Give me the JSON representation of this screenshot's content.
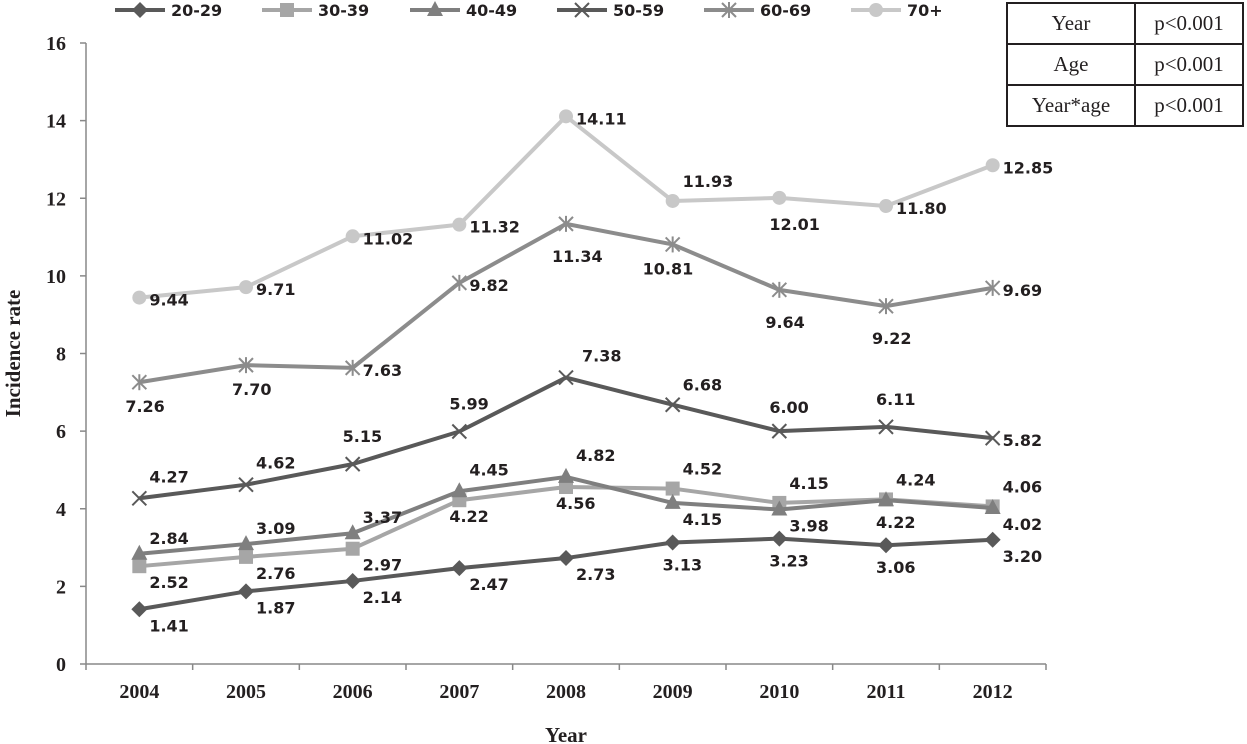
{
  "chart_data": {
    "type": "line",
    "xlabel": "Year",
    "ylabel": "Incidence rate",
    "ylim": [
      0,
      16
    ],
    "yticks": [
      "0",
      "2",
      "4",
      "6",
      "8",
      "10",
      "12",
      "14",
      "16"
    ],
    "categories": [
      "2004",
      "2005",
      "2006",
      "2007",
      "2008",
      "2009",
      "2010",
      "2011",
      "2012"
    ],
    "legend_position": "top",
    "series": [
      {
        "name": "20-29",
        "marker": "diamond",
        "color": "#595959",
        "values": [
          1.41,
          1.87,
          2.14,
          2.47,
          2.73,
          3.13,
          3.23,
          3.06,
          3.2
        ],
        "labels": [
          "1.41",
          "1.87",
          "2.14",
          "2.47",
          "2.73",
          "3.13",
          "3.23",
          "3.06",
          "3.20"
        ]
      },
      {
        "name": "30-39",
        "marker": "square",
        "color": "#a6a6a6",
        "values": [
          2.52,
          2.76,
          2.97,
          4.22,
          4.56,
          4.52,
          4.15,
          4.24,
          4.06
        ],
        "labels": [
          "2.52",
          "2.76",
          "2.97",
          "4.22",
          "4.56",
          "4.52",
          "4.15",
          "4.24",
          "4.06"
        ]
      },
      {
        "name": "40-49",
        "marker": "triangle",
        "color": "#7f7f7f",
        "values": [
          2.84,
          3.09,
          3.37,
          4.45,
          4.82,
          4.15,
          3.98,
          4.22,
          4.02
        ],
        "labels": [
          "2.84",
          "3.09",
          "3.37",
          "4.45",
          "4.82",
          "4.15",
          "3.98",
          "4.22",
          "4.02"
        ]
      },
      {
        "name": "50-59",
        "marker": "x",
        "color": "#595959",
        "values": [
          4.27,
          4.62,
          5.15,
          5.99,
          7.38,
          6.68,
          6.0,
          6.11,
          5.82
        ],
        "labels": [
          "4.27",
          "4.62",
          "5.15",
          "5.99",
          "7.38",
          "6.68",
          "6.00",
          "6.11",
          "5.82"
        ]
      },
      {
        "name": "60-69",
        "marker": "star",
        "color": "#8c8c8c",
        "values": [
          7.26,
          7.7,
          7.63,
          9.82,
          11.34,
          10.81,
          9.64,
          9.22,
          9.69
        ],
        "labels": [
          "7.26",
          "7.70",
          "7.63",
          "9.82",
          "11.34",
          "10.81",
          "9.64",
          "9.22",
          "9.69"
        ]
      },
      {
        "name": "70+",
        "marker": "circle",
        "color": "#c8c8c8",
        "values": [
          9.44,
          9.71,
          11.02,
          11.32,
          14.11,
          11.93,
          12.01,
          11.8,
          12.85
        ],
        "labels": [
          "9.44",
          "9.71",
          "11.02",
          "11.32",
          "14.11",
          "11.93",
          "12.01",
          "11.80",
          "12.85"
        ]
      }
    ],
    "stats_table": {
      "rows": [
        {
          "term": "Year",
          "p": "p<0.001"
        },
        {
          "term": "Age",
          "p": "p<0.001"
        },
        {
          "term": "Year*age",
          "p": "p<0.001"
        }
      ]
    }
  }
}
